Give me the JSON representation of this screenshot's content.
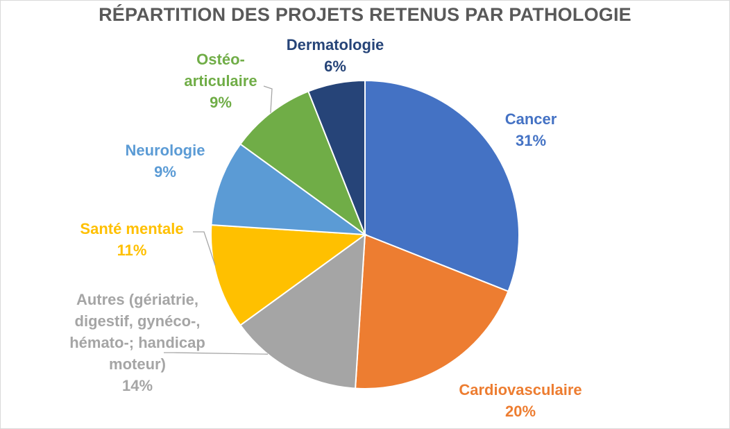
{
  "chart_data": {
    "type": "pie",
    "title": "RÉPARTITION DES PROJETS RETENUS PAR PATHOLOGIE",
    "slices": [
      {
        "name": "Cancer",
        "value": 31,
        "label": "31%",
        "color": "#4472c4"
      },
      {
        "name": "Cardiovasculaire",
        "value": 20,
        "label": "20%",
        "color": "#ed7d31"
      },
      {
        "name": "Autres (gériatrie, digestif, gynéco-, hémato-; handicap moteur)",
        "name_lines": [
          "Autres (gériatrie,",
          "digestif, gynéco-,",
          "hémato-; handicap",
          "moteur)"
        ],
        "value": 14,
        "label": "14%",
        "color": "#a5a5a5"
      },
      {
        "name": "Santé mentale",
        "value": 11,
        "label": "11%",
        "color": "#ffc000"
      },
      {
        "name": "Neurologie",
        "value": 9,
        "label": "9%",
        "color": "#5b9bd5"
      },
      {
        "name": "Ostéo-articulaire",
        "name_lines": [
          "Ostéo-",
          "articulaire"
        ],
        "value": 9,
        "label": "9%",
        "color": "#70ad47"
      },
      {
        "name": "Dermatologie",
        "value": 6,
        "label": "6%",
        "color": "#264478"
      }
    ]
  }
}
